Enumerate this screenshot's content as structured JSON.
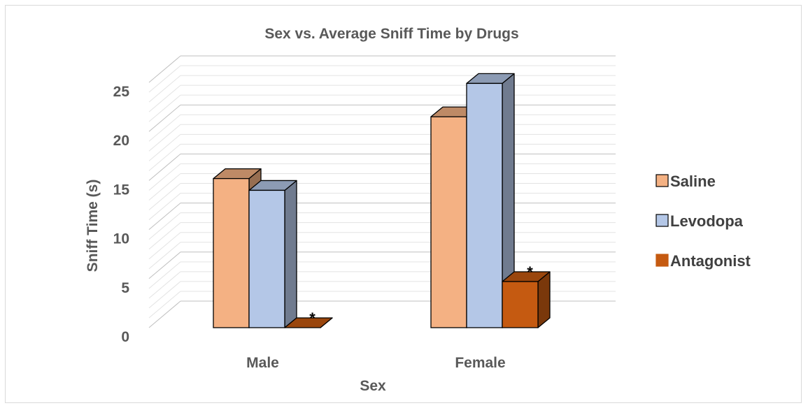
{
  "chart_data": {
    "type": "bar",
    "title": "Sex vs. Average Sniff Time by Drugs",
    "xlabel": "Sex",
    "ylabel": "Sniff Time (s)",
    "categories": [
      "Male",
      "Female"
    ],
    "ylim": [
      0,
      25
    ],
    "yticks": [
      "0",
      "5",
      "10",
      "15",
      "20",
      "25"
    ],
    "grid": true,
    "legend_position": "right",
    "series": [
      {
        "name": "Saline",
        "color": "#F4B183",
        "values": [
          15.2,
          21.5
        ]
      },
      {
        "name": "Levodopa",
        "color": "#B4C7E7",
        "values": [
          14.0,
          24.9
        ]
      },
      {
        "name": "Antagonist",
        "color": "#C55A11",
        "values": [
          0,
          4.7
        ]
      }
    ],
    "annotations": [
      {
        "text": "*",
        "category": "Male",
        "series": "Antagonist"
      },
      {
        "text": "*",
        "category": "Female",
        "series": "Antagonist"
      }
    ]
  }
}
